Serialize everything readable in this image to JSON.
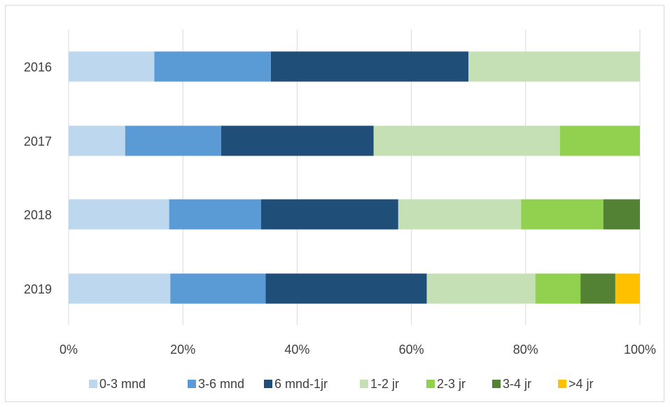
{
  "chart_data": {
    "type": "bar",
    "orientation": "horizontal",
    "stacked": "percent",
    "categories": [
      "2016",
      "2017",
      "2018",
      "2019"
    ],
    "xlim": [
      0,
      100
    ],
    "x_ticks": [
      "0%",
      "20%",
      "40%",
      "60%",
      "80%",
      "100%"
    ],
    "grid": "vertical",
    "legend_position": "bottom",
    "series": [
      {
        "name": "0-3 mnd",
        "color": "#bdd7ee",
        "values": [
          15.0,
          9.9,
          17.6,
          17.8
        ]
      },
      {
        "name": "3-6 mnd",
        "color": "#5b9bd5",
        "values": [
          20.4,
          16.8,
          16.1,
          16.7
        ]
      },
      {
        "name": "6 mnd-1jr",
        "color": "#1f4e79",
        "values": [
          34.6,
          26.7,
          24.0,
          28.2
        ]
      },
      {
        "name": "1-2 jr",
        "color": "#c5e0b4",
        "values": [
          30.0,
          32.6,
          21.5,
          19.0
        ]
      },
      {
        "name": "2-3 jr",
        "color": "#92d050",
        "values": [
          0,
          14.0,
          14.4,
          7.9
        ]
      },
      {
        "name": "3-4 jr",
        "color": "#548235",
        "values": [
          0,
          0,
          6.4,
          6.1
        ]
      },
      {
        "name": ">4 jr",
        "color": "#ffc000",
        "values": [
          0,
          0,
          0,
          4.3
        ]
      }
    ]
  }
}
